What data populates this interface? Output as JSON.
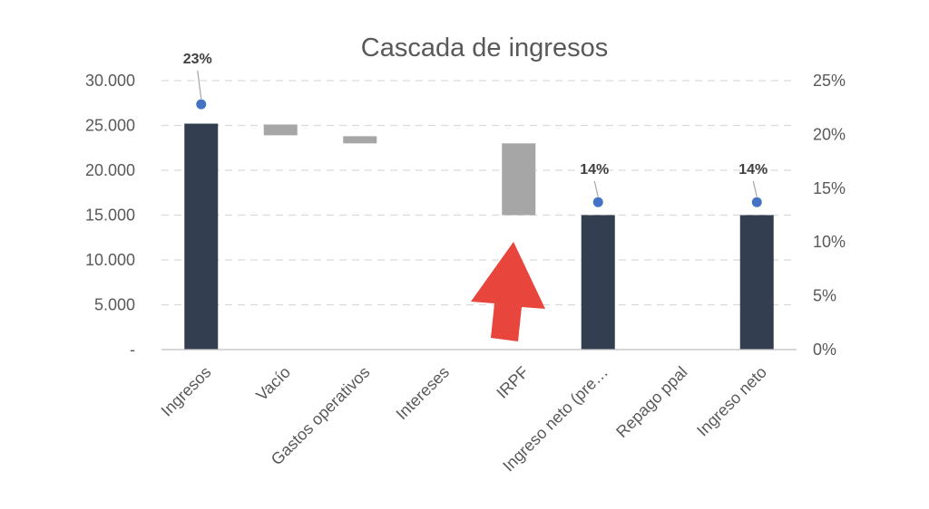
{
  "chart_data": {
    "type": "bar",
    "title": "Cascada de ingresos",
    "categories": [
      "Ingresos",
      "Vacío",
      "Gastos operativos",
      "Intereses",
      "IRPF",
      "Ingreso neto (pre…",
      "Repago ppal",
      "Ingreso neto"
    ],
    "series": [
      {
        "kind": "total",
        "color": "#333f50",
        "values": [
          [
            0,
            25200
          ],
          null,
          null,
          null,
          null,
          [
            0,
            15000
          ],
          null,
          [
            0,
            15000
          ]
        ]
      },
      {
        "kind": "change",
        "color": "#a6a6a6",
        "values": [
          null,
          [
            23900,
            25100
          ],
          [
            23000,
            23800
          ],
          null,
          [
            15000,
            23000
          ],
          null,
          null,
          null
        ]
      },
      {
        "kind": "percentage",
        "axis": "right",
        "color": "#4472c4",
        "values": [
          0.228,
          null,
          null,
          null,
          null,
          0.137,
          null,
          0.137
        ]
      }
    ],
    "point_labels": [
      "23%",
      "",
      "",
      "",
      "",
      "14%",
      "",
      "14%"
    ],
    "y_left": {
      "range": [
        0,
        30000
      ],
      "ticks": [
        0,
        5000,
        10000,
        15000,
        20000,
        25000,
        30000
      ],
      "tick_labels": [
        "-",
        "5.000",
        "10.000",
        "15.000",
        "20.000",
        "25.000",
        "30.000"
      ]
    },
    "y_right": {
      "range": [
        0,
        0.25
      ],
      "ticks": [
        0,
        0.05,
        0.1,
        0.15,
        0.2,
        0.25
      ],
      "tick_labels": [
        "0%",
        "5%",
        "10%",
        "15%",
        "20%",
        "25%"
      ]
    },
    "grid": true,
    "legend": "none",
    "annotation": {
      "type": "arrow",
      "color": "#e8453c",
      "points_to": "IRPF"
    }
  }
}
